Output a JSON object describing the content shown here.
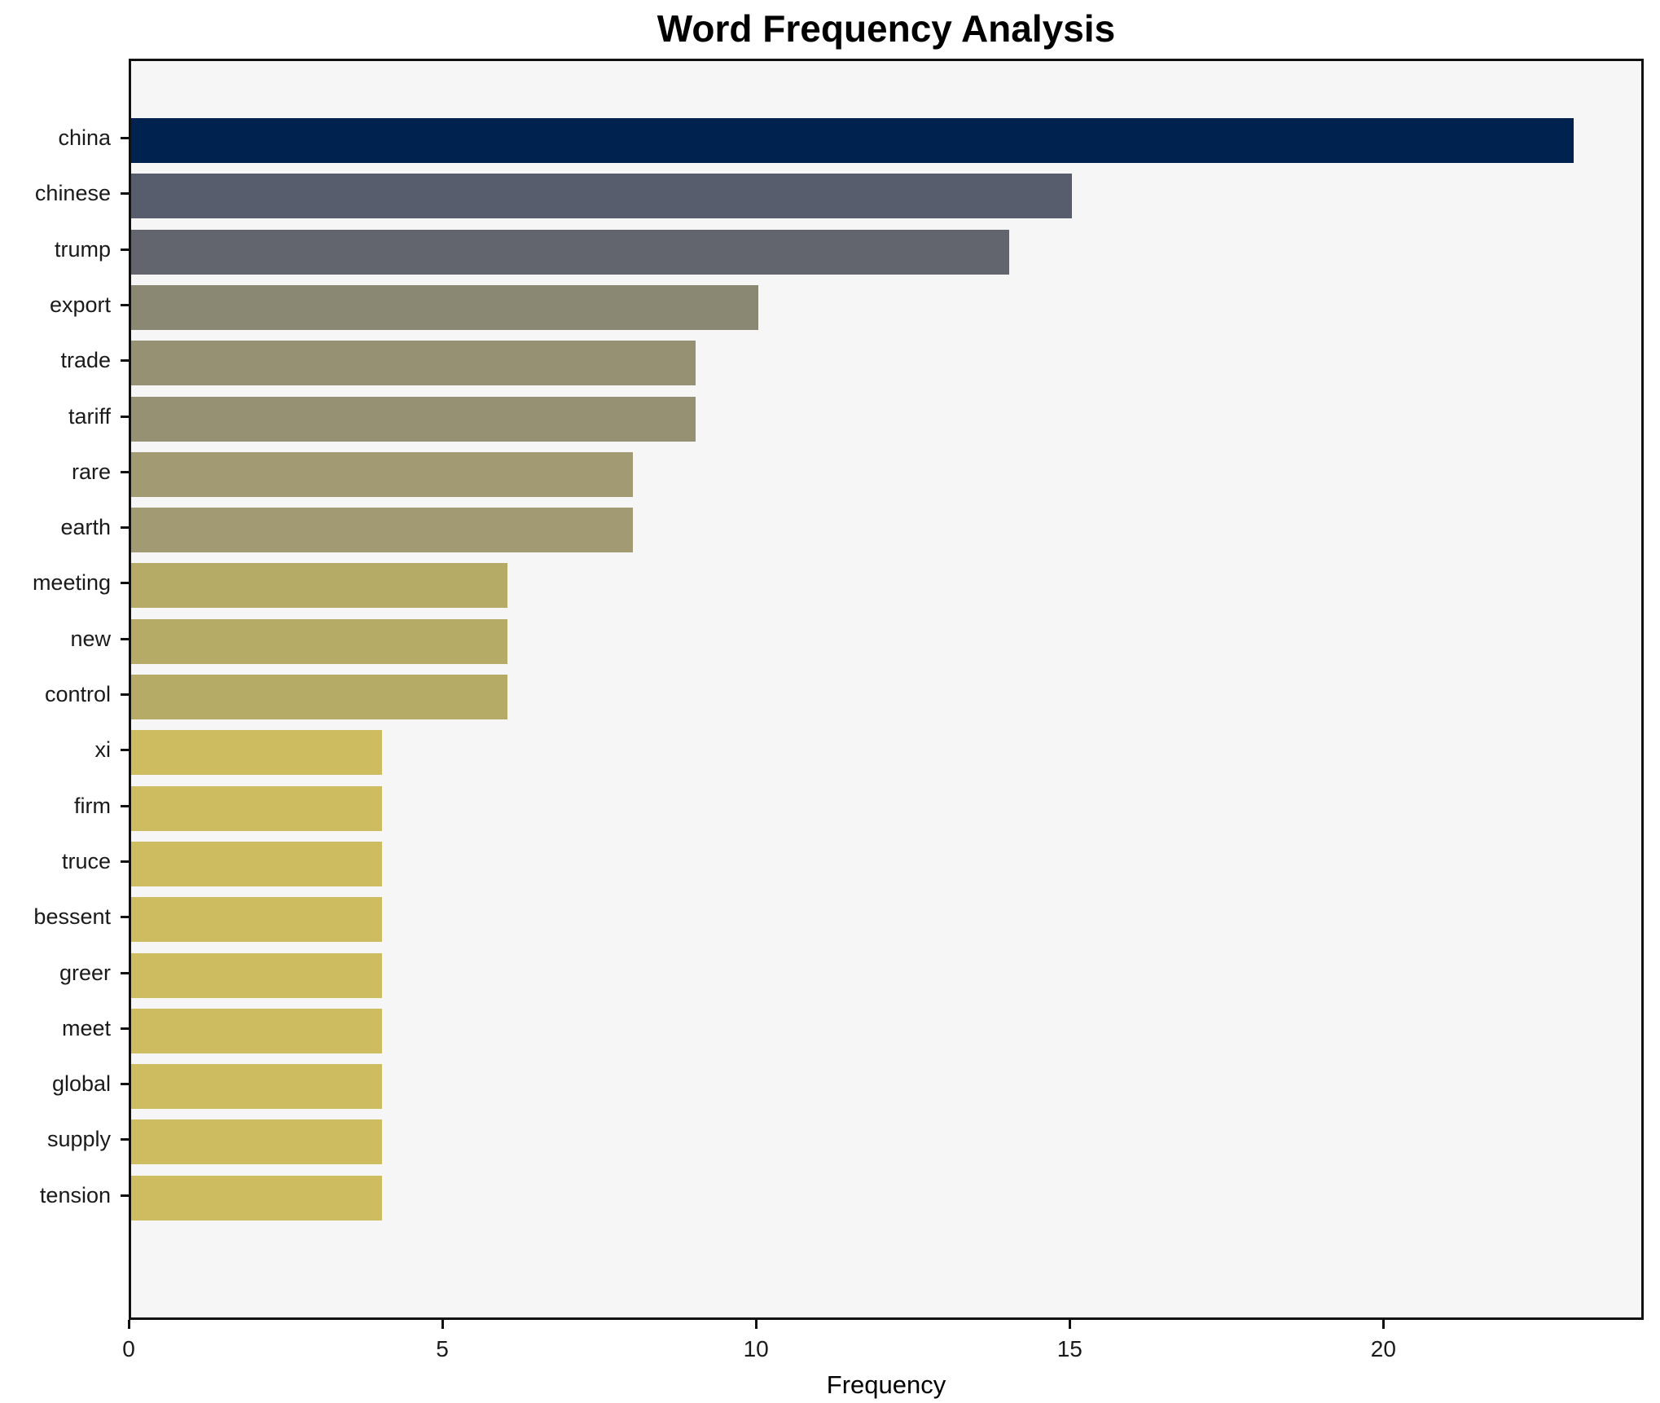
{
  "chart": {
    "title": "Word Frequency Analysis",
    "xlabel": "Frequency"
  },
  "chart_data": {
    "type": "bar",
    "orientation": "horizontal",
    "title": "Word Frequency Analysis",
    "xlabel": "Frequency",
    "ylabel": "",
    "categories": [
      "china",
      "chinese",
      "trump",
      "export",
      "trade",
      "tariff",
      "rare",
      "earth",
      "meeting",
      "new",
      "control",
      "xi",
      "firm",
      "truce",
      "bessent",
      "greer",
      "meet",
      "global",
      "supply",
      "tension"
    ],
    "values": [
      23,
      15,
      14,
      10,
      9,
      9,
      8,
      8,
      6,
      6,
      6,
      4,
      4,
      4,
      4,
      4,
      4,
      4,
      4,
      4
    ],
    "bar_colors": [
      "#00224e",
      "#575d6d",
      "#62656e",
      "#8a8873",
      "#959172",
      "#959172",
      "#a19a72",
      "#a19a72",
      "#b5aa66",
      "#b5aa66",
      "#b5aa66",
      "#cdbd60",
      "#cdbd60",
      "#cdbd60",
      "#cdbd60",
      "#cdbd60",
      "#cdbd60",
      "#cdbd60",
      "#cdbd60",
      "#cdbd60"
    ],
    "x_ticks": [
      0,
      5,
      10,
      15,
      20
    ],
    "xlim": [
      0,
      24.15
    ],
    "grid": false,
    "legend": null,
    "plot_background": "#f6f6f6",
    "figure_background": "#ffffff",
    "spine_color": "#111111"
  }
}
